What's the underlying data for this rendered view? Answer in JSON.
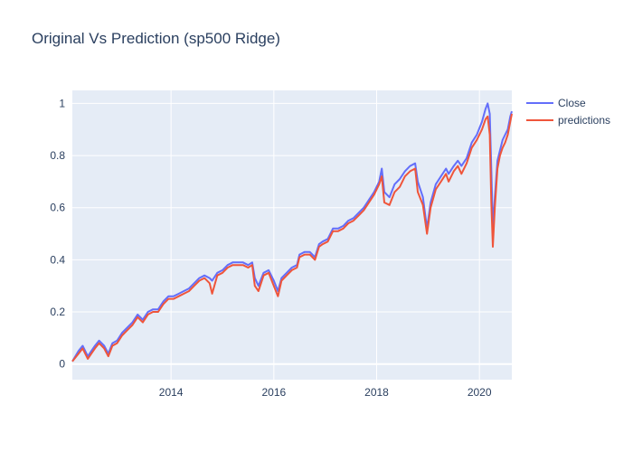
{
  "chart_data": {
    "type": "line",
    "title": "Original Vs Prediction (sp500 Ridge)",
    "xlabel": "",
    "ylabel": "",
    "xlim": [
      2012.08,
      2020.63
    ],
    "ylim": [
      -0.06,
      1.05
    ],
    "x_ticks": [
      2014,
      2016,
      2018,
      2020
    ],
    "y_ticks": [
      0,
      0.2,
      0.4,
      0.6,
      0.8,
      1
    ],
    "y_tick_labels": [
      "0",
      "0.2",
      "0.4",
      "0.6",
      "0.8",
      "1"
    ],
    "grid": true,
    "legend": "top-right",
    "series": [
      {
        "name": "Close",
        "color": "#636efa"
      },
      {
        "name": "predictions",
        "color": "#ef553b"
      }
    ],
    "x": [
      2012.08,
      2012.2,
      2012.28,
      2012.38,
      2012.45,
      2012.52,
      2012.6,
      2012.7,
      2012.78,
      2012.86,
      2012.95,
      2013.05,
      2013.15,
      2013.25,
      2013.35,
      2013.45,
      2013.55,
      2013.65,
      2013.75,
      2013.85,
      2013.95,
      2014.05,
      2014.15,
      2014.25,
      2014.35,
      2014.45,
      2014.55,
      2014.65,
      2014.75,
      2014.8,
      2014.9,
      2015.0,
      2015.1,
      2015.2,
      2015.3,
      2015.4,
      2015.5,
      2015.58,
      2015.63,
      2015.7,
      2015.8,
      2015.9,
      2016.0,
      2016.08,
      2016.15,
      2016.25,
      2016.35,
      2016.45,
      2016.5,
      2016.6,
      2016.7,
      2016.8,
      2016.88,
      2016.95,
      2017.05,
      2017.15,
      2017.25,
      2017.35,
      2017.45,
      2017.55,
      2017.65,
      2017.75,
      2017.85,
      2017.95,
      2018.05,
      2018.1,
      2018.15,
      2018.25,
      2018.35,
      2018.45,
      2018.55,
      2018.65,
      2018.75,
      2018.8,
      2018.9,
      2018.98,
      2019.05,
      2019.15,
      2019.25,
      2019.35,
      2019.4,
      2019.5,
      2019.58,
      2019.65,
      2019.75,
      2019.85,
      2019.95,
      2020.05,
      2020.12,
      2020.16,
      2020.2,
      2020.23,
      2020.26,
      2020.3,
      2020.35,
      2020.4,
      2020.45,
      2020.5,
      2020.55,
      2020.6,
      2020.63
    ],
    "close_values": [
      0.01,
      0.05,
      0.07,
      0.03,
      0.05,
      0.07,
      0.09,
      0.07,
      0.04,
      0.08,
      0.09,
      0.12,
      0.14,
      0.16,
      0.19,
      0.17,
      0.2,
      0.21,
      0.21,
      0.24,
      0.26,
      0.26,
      0.27,
      0.28,
      0.29,
      0.31,
      0.33,
      0.34,
      0.33,
      0.32,
      0.35,
      0.36,
      0.38,
      0.39,
      0.39,
      0.39,
      0.38,
      0.39,
      0.33,
      0.3,
      0.35,
      0.36,
      0.32,
      0.28,
      0.33,
      0.35,
      0.37,
      0.38,
      0.42,
      0.43,
      0.43,
      0.41,
      0.46,
      0.47,
      0.48,
      0.52,
      0.52,
      0.53,
      0.55,
      0.56,
      0.58,
      0.6,
      0.63,
      0.66,
      0.7,
      0.75,
      0.66,
      0.64,
      0.69,
      0.71,
      0.74,
      0.76,
      0.77,
      0.7,
      0.64,
      0.52,
      0.62,
      0.69,
      0.72,
      0.75,
      0.73,
      0.76,
      0.78,
      0.76,
      0.79,
      0.85,
      0.88,
      0.93,
      0.98,
      1.0,
      0.96,
      0.75,
      0.52,
      0.64,
      0.78,
      0.82,
      0.86,
      0.88,
      0.9,
      0.95,
      0.97
    ],
    "prediction_values": [
      0.01,
      0.04,
      0.06,
      0.02,
      0.04,
      0.06,
      0.08,
      0.06,
      0.03,
      0.07,
      0.08,
      0.11,
      0.13,
      0.15,
      0.18,
      0.16,
      0.19,
      0.2,
      0.2,
      0.23,
      0.25,
      0.25,
      0.26,
      0.27,
      0.28,
      0.3,
      0.32,
      0.33,
      0.31,
      0.27,
      0.34,
      0.35,
      0.37,
      0.38,
      0.38,
      0.38,
      0.37,
      0.38,
      0.3,
      0.28,
      0.34,
      0.35,
      0.3,
      0.26,
      0.32,
      0.34,
      0.36,
      0.37,
      0.41,
      0.42,
      0.42,
      0.4,
      0.45,
      0.46,
      0.47,
      0.51,
      0.51,
      0.52,
      0.54,
      0.55,
      0.57,
      0.59,
      0.62,
      0.65,
      0.69,
      0.72,
      0.62,
      0.61,
      0.66,
      0.68,
      0.72,
      0.74,
      0.75,
      0.66,
      0.61,
      0.5,
      0.6,
      0.67,
      0.7,
      0.73,
      0.7,
      0.74,
      0.76,
      0.73,
      0.77,
      0.83,
      0.86,
      0.9,
      0.94,
      0.95,
      0.88,
      0.62,
      0.45,
      0.6,
      0.75,
      0.8,
      0.83,
      0.85,
      0.88,
      0.93,
      0.96
    ]
  }
}
